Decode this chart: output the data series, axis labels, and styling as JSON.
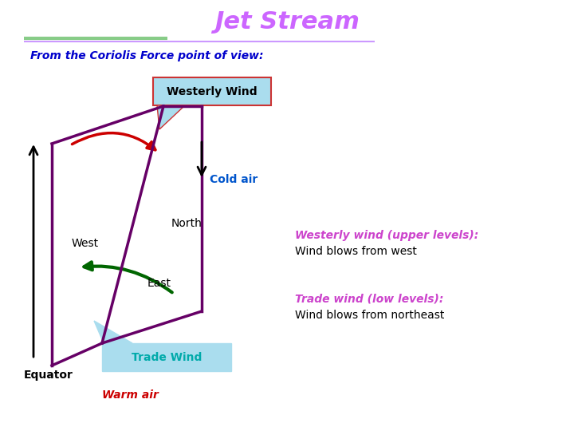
{
  "title": "Jet Stream",
  "title_color": "#cc66ff",
  "title_fontsize": 22,
  "subtitle": "From the Coriolis Force point of view:",
  "subtitle_color": "#0000cc",
  "subtitle_fontsize": 10,
  "bg_color": "#ffffff",
  "sep_green_color": "#88cc88",
  "sep_purple_color": "#cc99ff",
  "box_westerly_color": "#aaddee",
  "box_westerly_text": "Westerly Wind",
  "box_westerly_edge": "#cc3333",
  "box_trade_color": "#aaddee",
  "box_trade_text": "Trade Wind",
  "box_trade_text_color": "#00aaaa",
  "cold_air_text": "Cold air",
  "cold_air_color": "#0055cc",
  "north_text": "North",
  "west_text": "West",
  "east_text": "East",
  "equator_text": "Equator",
  "warm_air_text": "Warm air",
  "warm_air_color": "#cc0000",
  "shape_color": "#660066",
  "red_arrow_color": "#cc0000",
  "green_arrow_color": "#006600",
  "right_title1": "Westerly wind (upper levels):",
  "right_text1": "Wind blows from west",
  "right_title1_color": "#cc44cc",
  "right_title2": "Trade wind (low levels):",
  "right_text2": "Wind blows from northeast",
  "right_title2_color": "#cc44cc",
  "right_text_color": "#000000",
  "shape_lw": 2.5,
  "arrow_lw": 2.0
}
